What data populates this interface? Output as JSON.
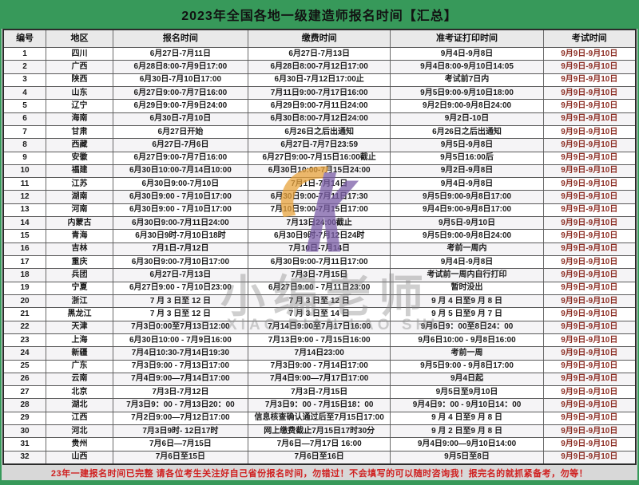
{
  "title": "2023年全国各地一级建造师报名时间【汇总】",
  "columns": [
    "编号",
    "地区",
    "报名时间",
    "缴费时间",
    "准考证打印时间",
    "考试时间"
  ],
  "rows": [
    {
      "no": "1",
      "region": "四川",
      "register": "6月27日-7月11日",
      "pay": "6月27日-7月13日",
      "print": "9月4日-9月8日",
      "exam": "9月9日-9月10日"
    },
    {
      "no": "2",
      "region": "广西",
      "register": "6月28日8:00-7月9日17:00",
      "pay": "6月28日8:00-7月12日17:00",
      "print": "9月4日8:00-9月10日14:05",
      "exam": "9月9日-9月10日"
    },
    {
      "no": "3",
      "region": "陕西",
      "register": "6月30日-7月10日17:00",
      "pay": "6月30日-7月12日17:00止",
      "print": "考试前7日内",
      "exam": "9月9日-9月10日"
    },
    {
      "no": "4",
      "region": "山东",
      "register": "6月27日9:00-7月7日16:00",
      "pay": "7月11日9:00-7月17日16:00",
      "print": "9月5日9:00-9月10日18:00",
      "exam": "9月9日-9月10日"
    },
    {
      "no": "5",
      "region": "辽宁",
      "register": "6月29日9:00-7月9日24:00",
      "pay": "6月29日9:00-7月11日24:00",
      "print": "9月2日9:00-9月8日24:00",
      "exam": "9月9日-9月10日"
    },
    {
      "no": "6",
      "region": "海南",
      "register": "6月30日-7月10日",
      "pay": "6月30日8:00-7月12日24:00",
      "print": "9月2日-10日",
      "exam": "9月9日-9月10日"
    },
    {
      "no": "7",
      "region": "甘肃",
      "register": "6月27日开始",
      "pay": "6月26日之后出通知",
      "print": "6月26日之后出通知",
      "exam": "9月9日-9月10日"
    },
    {
      "no": "8",
      "region": "西藏",
      "register": "6月27日-7月6日",
      "pay": "6月27日-7月7日23:59",
      "print": "9月5日-9月8日",
      "exam": "9月9日-9月10日"
    },
    {
      "no": "9",
      "region": "安徽",
      "register": "6月27日9:00-7月7日16:00",
      "pay": "6月27日9:00-7月15日16:00截止",
      "print": "9月5日16:00后",
      "exam": "9月9日-9月10日"
    },
    {
      "no": "10",
      "region": "福建",
      "register": "6月30日10:00-7月14日10:00",
      "pay": "6月30日10:00-7月15日24:00",
      "print": "9月2日-9月8日",
      "exam": "9月9日-9月10日"
    },
    {
      "no": "11",
      "region": "江苏",
      "register": "6月30日9:00-7月10日",
      "pay": "7月1日-7月14日",
      "print": "9月4日-9月8日",
      "exam": "9月9日-9月10日"
    },
    {
      "no": "12",
      "region": "湖南",
      "register": "6月30日9:00 - 7月10日17:00",
      "pay": "6月30日9:00-7月11日17:30",
      "print": "9月5日9:00-9月8日17:00",
      "exam": "9月9日-9月10日"
    },
    {
      "no": "13",
      "region": "河南",
      "register": "6月30日9:00 - 7月10日17:00",
      "pay": "7月10日9:00-7月15日17:00",
      "print": "9月4日9:00-9月8日17:00",
      "exam": "9月9日-9月10日"
    },
    {
      "no": "14",
      "region": "内蒙古",
      "register": "6月30日9:00-7月11日24:00",
      "pay": "7月13日24:00截止",
      "print": "9月5日-9月10日",
      "exam": "9月9日-9月10日"
    },
    {
      "no": "15",
      "region": "青海",
      "register": "6月30日9时-7月10日18时",
      "pay": "6月30日9时-7月12日24时",
      "print": "9月5日9:00-9月8日24:00",
      "exam": "9月9日-9月10日"
    },
    {
      "no": "16",
      "region": "吉林",
      "register": "7月1日-7月12日",
      "pay": "7月10日-7月14日",
      "print": "考前一周内",
      "exam": "9月9日-9月10日"
    },
    {
      "no": "17",
      "region": "重庆",
      "register": "6月30日9:00-7月10日17:00",
      "pay": "6月30日9:00-7月11日17:00",
      "print": "9月4日-9月8日",
      "exam": "9月9日-9月10日"
    },
    {
      "no": "18",
      "region": "兵团",
      "register": "6月27日-7月13日",
      "pay": "7月3日-7月15日",
      "print": "考试前一周内自行打印",
      "exam": "9月9日-9月10日"
    },
    {
      "no": "19",
      "region": "宁夏",
      "register": "6月27日9:00 - 7月10日23:00",
      "pay": "6月27日9:00 - 7月11日23:00",
      "print": "暂时没出",
      "exam": "9月9日-9月10日"
    },
    {
      "no": "20",
      "region": "浙江",
      "register": "7 月 3 日至 12 日",
      "pay": "7 月 3 日至 12 日",
      "print": "9 月 4 日至9 月 8 日",
      "exam": "9月9日-9月10日"
    },
    {
      "no": "21",
      "region": "黑龙江",
      "register": "7 月 3 日至 12 日",
      "pay": "7 月 3 日至 14 日",
      "print": "9 月 5 日至9 月 7 日",
      "exam": "9月9日-9月10日"
    },
    {
      "no": "22",
      "region": "天津",
      "register": "7月3日0:00至7月13日12:00",
      "pay": "7月14日9:00至7月17日16:00",
      "print": "9月6日9：00至8日24：00",
      "exam": "9月9日-9月10日"
    },
    {
      "no": "23",
      "region": "上海",
      "register": "6月30日10:00 - 7月9日16:00",
      "pay": "7月13日9:00 - 7月15日16:00",
      "print": "9月6日10:00 - 9月8日16:00",
      "exam": "9月9日-9月10日"
    },
    {
      "no": "24",
      "region": "新疆",
      "register": "7月4日10:30-7月14日19:30",
      "pay": "7月14日23:00",
      "print": "考前一周",
      "exam": "9月9日-9月10日"
    },
    {
      "no": "25",
      "region": "广东",
      "register": "7月3日9:00 - 7月13日17:00",
      "pay": "7月3日9:00 - 7月14日17:00",
      "print": "9月5日9:00 - 9月8日17:00",
      "exam": "9月9日-9月10日"
    },
    {
      "no": "26",
      "region": "云南",
      "register": "7月4日9:00—7月14日17:00",
      "pay": "7月4日9:00—7月17日17:00",
      "print": "9月4日起",
      "exam": "9月9日-9月10日"
    },
    {
      "no": "27",
      "region": "北京",
      "register": "7月3日-7月12日",
      "pay": "7月3日-7月15日",
      "print": "9月5日至9月10日",
      "exam": "9月9日-9月10日"
    },
    {
      "no": "28",
      "region": "湖北",
      "register": "7月3日9：00 - 7月13日20：00",
      "pay": "7月3日9：00 - 7月15日18：00",
      "print": "9月4日9：00 - 9月10日14：00",
      "exam": "9月9日-9月10日"
    },
    {
      "no": "29",
      "region": "江西",
      "register": "7月2日9:00—7月12日17:00",
      "pay": "信息核查确认通过后至7月15日17:00",
      "print": "9 月 4 日至9 月 8 日",
      "exam": "9月9日-9月10日"
    },
    {
      "no": "30",
      "region": "河北",
      "register": "7月3日9时- 12日17时",
      "pay": "网上缴费截止7月15日17时30分",
      "print": "9 月 2 日至9 月 8 日",
      "exam": "9月9日-9月10日"
    },
    {
      "no": "31",
      "region": "贵州",
      "register": "7月6日—7月15日",
      "pay": "7月6日—7月17日 16:00",
      "print": "9月4日9:00—9月10日14:00",
      "exam": "9月9日-9月10日"
    },
    {
      "no": "32",
      "region": "山西",
      "register": "7月6日至15日",
      "pay": "7月6日至16日",
      "print": "9月5日至8日",
      "exam": "9月9日-9月10日"
    }
  ],
  "footer_note": "23年一建报名时间已完整  请各位考生关注好自己省份报名时间，勿错过！不会填写的可以随时咨询我！报完名的就抓紧备考，勿等！",
  "watermark": {
    "cn": "小编老师",
    "latin": "XIAO BIAN LAO SHI"
  },
  "colors": {
    "green": "#37995a",
    "footer_red": "#d01f1f",
    "exam_red": "#8c2d23",
    "logo_orange": "#e8a33d",
    "logo_purple": "#7b5ea7"
  }
}
